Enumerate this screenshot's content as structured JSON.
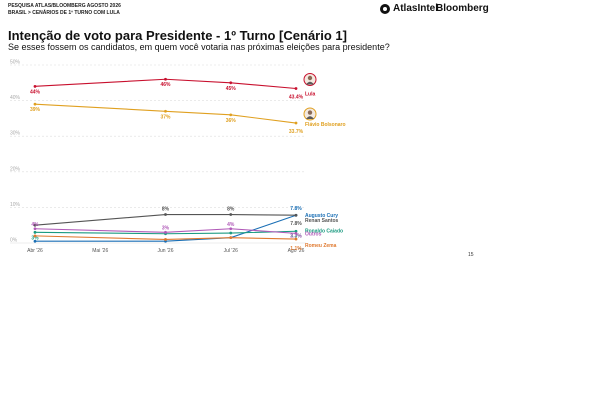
{
  "header": {
    "line1": "PESQUISA ATLAS/BLOOMBERG AGOSTO 2026",
    "line2": "BRASIL > CENÁRIOS DE 1º TURNO COM LULA"
  },
  "brands": {
    "atlas": "AtlasIntel",
    "bloomberg": "Bloomberg"
  },
  "page_number": "15",
  "chart_data": {
    "type": "line",
    "title": "Intenção de voto para Presidente  - 1º Turno [Cenário 1]",
    "subtitle": "Se esses fossem os candidatos, em quem você votaria nas próximas eleições para presidente?",
    "x": [
      "Abr '26",
      "Mai '26",
      "Jun '26",
      "Jul '26",
      "Ago '26"
    ],
    "y_ticks": [
      "0%",
      "10%",
      "20%",
      "30%",
      "40%",
      "50%"
    ],
    "ylim": [
      0,
      50
    ],
    "grid": true,
    "series": [
      {
        "name": "Lula",
        "color": "#c8102e",
        "values": [
          44,
          null,
          46,
          45,
          43.4
        ],
        "labels": [
          "44%",
          "",
          "46%",
          "45%",
          "43.4%"
        ]
      },
      {
        "name": "Flávio Bolsonaro",
        "color": "#e0a020",
        "values": [
          39,
          null,
          37,
          36,
          33.7
        ],
        "labels": [
          "39%",
          "",
          "37%",
          "36%",
          "33.7%"
        ]
      },
      {
        "name": "Augusto Cury",
        "color": "#1a6fb5",
        "values": [
          0.5,
          null,
          0.5,
          1.5,
          7.8
        ],
        "labels": [
          "",
          "",
          "",
          "",
          "7.8%"
        ]
      },
      {
        "name": "Renan Santos",
        "color": "#555555",
        "values": [
          5,
          null,
          8,
          8,
          7.8
        ],
        "labels": [
          "",
          "",
          "8%",
          "8%",
          "7.8%"
        ]
      },
      {
        "name": "Ronaldo Caiado",
        "color": "#1a9a80",
        "values": [
          3,
          null,
          2.6,
          2.8,
          3.3
        ],
        "labels": [
          "3%",
          "",
          "",
          "",
          "3.3%"
        ]
      },
      {
        "name": "Outros",
        "color": "#b05ab8",
        "values": [
          4,
          null,
          3,
          4,
          2.7
        ],
        "labels": [
          "4%",
          "",
          "3%",
          "4%",
          "2.7%"
        ]
      },
      {
        "name": "Romeu Zema",
        "color": "#e07a30",
        "values": [
          2,
          null,
          1,
          1.5,
          1.1
        ],
        "labels": [
          "",
          "",
          "",
          "",
          "1.1%"
        ]
      }
    ]
  }
}
